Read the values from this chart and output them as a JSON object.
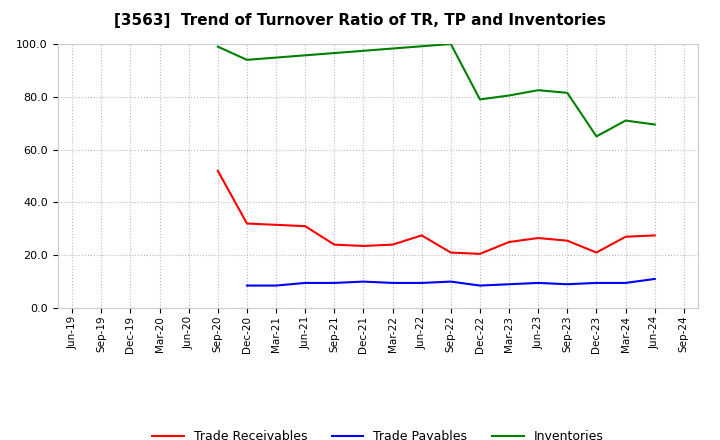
{
  "title": "[3563]  Trend of Turnover Ratio of TR, TP and Inventories",
  "xlabels": [
    "Jun-19",
    "Sep-19",
    "Dec-19",
    "Mar-20",
    "Jun-20",
    "Sep-20",
    "Dec-20",
    "Mar-21",
    "Jun-21",
    "Sep-21",
    "Dec-21",
    "Mar-22",
    "Jun-22",
    "Sep-22",
    "Dec-22",
    "Mar-23",
    "Jun-23",
    "Sep-23",
    "Dec-23",
    "Mar-24",
    "Jun-24",
    "Sep-24"
  ],
  "tr_x": [
    5,
    6,
    7,
    8,
    9,
    10,
    11,
    12,
    13,
    14,
    15,
    16,
    17,
    18,
    19,
    20
  ],
  "tr_y": [
    52.0,
    32.0,
    31.5,
    31.0,
    24.0,
    23.5,
    24.0,
    27.5,
    21.0,
    20.5,
    25.0,
    26.5,
    25.5,
    21.0,
    27.0,
    27.5
  ],
  "tp_x": [
    6,
    7,
    8,
    9,
    10,
    11,
    12,
    13,
    14,
    15,
    16,
    17,
    18,
    19,
    20
  ],
  "tp_y": [
    8.5,
    8.5,
    9.5,
    9.5,
    10.0,
    9.5,
    9.5,
    10.0,
    8.5,
    9.0,
    9.5,
    9.0,
    9.5,
    9.5,
    11.0
  ],
  "inv_x": [
    5,
    6,
    13,
    14,
    15,
    16,
    17,
    18,
    19,
    20
  ],
  "inv_y": [
    99.0,
    94.0,
    100.0,
    79.0,
    80.5,
    82.5,
    81.5,
    65.0,
    71.0,
    69.5
  ],
  "tr_color": "#FF0000",
  "tp_color": "#0000FF",
  "inv_color": "#008000",
  "ylim": [
    0,
    100
  ],
  "yticks": [
    0.0,
    20.0,
    40.0,
    60.0,
    80.0,
    100.0
  ],
  "bg_color": "#FFFFFF",
  "grid_color": "#BBBBBB",
  "title_fontsize": 11,
  "legend_labels": [
    "Trade Receivables",
    "Trade Payables",
    "Inventories"
  ]
}
